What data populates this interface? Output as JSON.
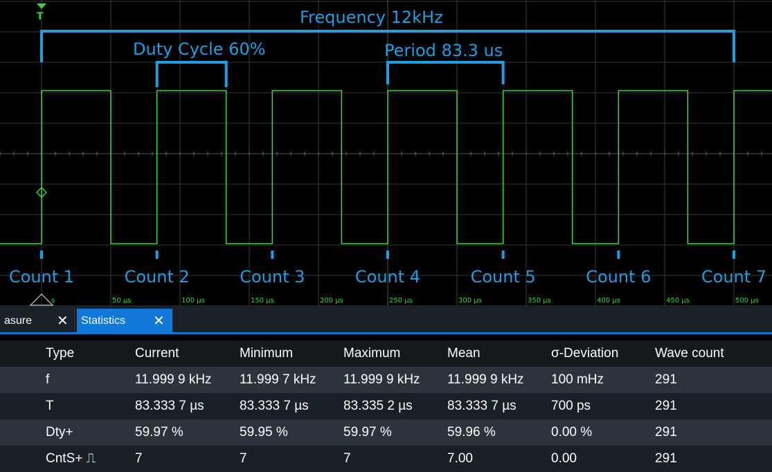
{
  "annotations": {
    "frequency": "Frequency 12kHz",
    "duty_cycle": "Duty Cycle 60%",
    "period": "Period 83.3 us",
    "counts": [
      "Count 1",
      "Count 2",
      "Count 3",
      "Count 4",
      "Count 5",
      "Count 6",
      "Count 7"
    ]
  },
  "trigger_label": "T",
  "time_axis": {
    "ticks": [
      "50 µs",
      "100 µs",
      "150 µs",
      "200 µs",
      "250 µs",
      "300 µs",
      "350 µs",
      "400 µs",
      "450 µs",
      "500 µs"
    ],
    "partial_first_tick": "s"
  },
  "waveform": {
    "color": "#3bd23b",
    "period_us": 83.333,
    "duty": 0.6,
    "cycles_shown": 7
  },
  "tabs": [
    {
      "label": "asure"
    },
    {
      "label": "Statistics",
      "active": true
    }
  ],
  "statistics": {
    "headers": [
      "Type",
      "Current",
      "Minimum",
      "Maximum",
      "Mean",
      "σ-Deviation",
      "Wave count"
    ],
    "rows": [
      [
        "f",
        "11.999 9 kHz",
        "11.999 7 kHz",
        "11.999 9 kHz",
        "11.999 9 kHz",
        "100 mHz",
        "291"
      ],
      [
        "T",
        "83.333 7 µs",
        "83.333 7 µs",
        "83.335 2 µs",
        "83.333 7 µs",
        "700 ps",
        "291"
      ],
      [
        "Dty+",
        "59.97 %",
        "59.95 %",
        "59.97 %",
        "59.96 %",
        "0.00 %",
        "291"
      ],
      [
        "CntS+ ⎍",
        "7",
        "7",
        "7",
        "7.00",
        "0.00",
        "291"
      ]
    ]
  },
  "colors": {
    "annotation": "#1f9ee0",
    "active_tab": "#1178d8"
  }
}
